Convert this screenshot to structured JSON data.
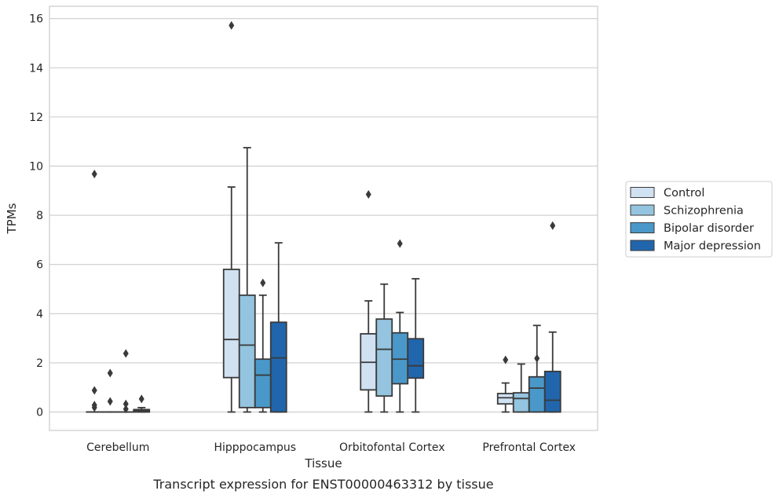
{
  "chart_data": {
    "type": "box",
    "title": "",
    "caption": "Transcript expression for ENST00000463312 by tissue",
    "xlabel": "Tissue",
    "ylabel": "TPMs",
    "ylim": [
      -0.75,
      16.5
    ],
    "yticks": [
      0,
      2,
      4,
      6,
      8,
      10,
      12,
      14,
      16
    ],
    "grid": "horizontal",
    "legend_position": "right",
    "categories": [
      "Cerebellum",
      "Hipppocampus",
      "Orbitofontal Cortex",
      "Prefrontal Cortex"
    ],
    "series": [
      {
        "name": "Control",
        "color": "#d0e1f2",
        "boxes": [
          {
            "q1": 0,
            "median": 0,
            "q3": 0,
            "whisker_low": 0,
            "whisker_high": 0,
            "outliers": [
              0.88,
              0.28,
              0.18,
              9.68
            ]
          },
          {
            "q1": 1.4,
            "median": 2.95,
            "q3": 5.8,
            "whisker_low": 0,
            "whisker_high": 9.15,
            "outliers": [
              15.72
            ]
          },
          {
            "q1": 0.9,
            "median": 2.02,
            "q3": 3.18,
            "whisker_low": 0,
            "whisker_high": 4.52,
            "outliers": [
              8.85
            ]
          },
          {
            "q1": 0.33,
            "median": 0.58,
            "q3": 0.75,
            "whisker_low": 0,
            "whisker_high": 1.18,
            "outliers": [
              2.12
            ]
          }
        ]
      },
      {
        "name": "Schizophrenia",
        "color": "#94c4df",
        "boxes": [
          {
            "q1": 0,
            "median": 0,
            "q3": 0,
            "whisker_low": 0,
            "whisker_high": 0,
            "outliers": [
              1.58,
              0.43
            ]
          },
          {
            "q1": 0.18,
            "median": 2.72,
            "q3": 4.75,
            "whisker_low": 0,
            "whisker_high": 10.75,
            "outliers": []
          },
          {
            "q1": 0.65,
            "median": 2.55,
            "q3": 3.78,
            "whisker_low": 0,
            "whisker_high": 5.2,
            "outliers": []
          },
          {
            "q1": 0,
            "median": 0.55,
            "q3": 0.78,
            "whisker_low": 0,
            "whisker_high": 1.95,
            "outliers": []
          }
        ]
      },
      {
        "name": "Bipolar disorder",
        "color": "#4a98c9",
        "boxes": [
          {
            "q1": 0,
            "median": 0,
            "q3": 0,
            "whisker_low": 0,
            "whisker_high": 0,
            "outliers": [
              2.38,
              0.33,
              0.12
            ]
          },
          {
            "q1": 0.18,
            "median": 1.5,
            "q3": 2.15,
            "whisker_low": 0,
            "whisker_high": 4.75,
            "outliers": [
              5.25
            ]
          },
          {
            "q1": 1.15,
            "median": 2.15,
            "q3": 3.22,
            "whisker_low": 0,
            "whisker_high": 4.05,
            "outliers": [
              6.85
            ]
          },
          {
            "q1": 0,
            "median": 0.97,
            "q3": 1.43,
            "whisker_low": 0,
            "whisker_high": 3.52,
            "outliers": [
              2.18
            ]
          }
        ]
      },
      {
        "name": "Major depression",
        "color": "#2166ac",
        "boxes": [
          {
            "q1": 0,
            "median": 0.05,
            "q3": 0.1,
            "whisker_low": 0,
            "whisker_high": 0.18,
            "outliers": [
              0.53
            ]
          },
          {
            "q1": 0,
            "median": 2.2,
            "q3": 3.65,
            "whisker_low": 0,
            "whisker_high": 6.88,
            "outliers": []
          },
          {
            "q1": 1.38,
            "median": 1.88,
            "q3": 2.98,
            "whisker_low": 0,
            "whisker_high": 5.42,
            "outliers": []
          },
          {
            "q1": 0,
            "median": 0.48,
            "q3": 1.65,
            "whisker_low": 0,
            "whisker_high": 3.25,
            "outliers": [
              7.58
            ]
          }
        ]
      }
    ]
  }
}
